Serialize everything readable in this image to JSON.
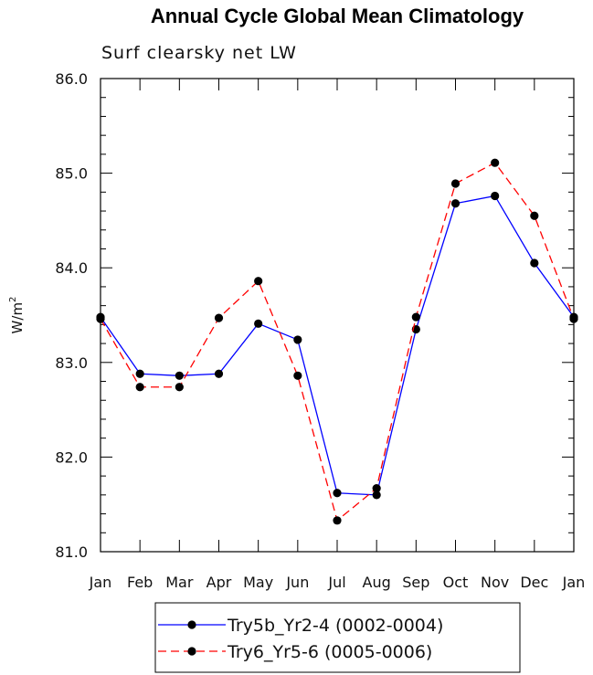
{
  "chart_data": {
    "type": "line",
    "title": "Annual Cycle Global Mean Climatology",
    "subtitle": "Surf clearsky net LW",
    "ylabel_base": "W/m",
    "ylabel_sup": "2",
    "ylim": [
      81.0,
      86.0
    ],
    "yticks": [
      "81.0",
      "82.0",
      "83.0",
      "84.0",
      "85.0",
      "86.0"
    ],
    "categories": [
      "Jan",
      "Feb",
      "Mar",
      "Apr",
      "May",
      "Jun",
      "Jul",
      "Aug",
      "Sep",
      "Oct",
      "Nov",
      "Dec",
      "Jan"
    ],
    "series": [
      {
        "name": "Try5b_Yr2-4 (0002-0004)",
        "color": "#0000ff",
        "dash": "solid",
        "values": [
          83.48,
          82.88,
          82.86,
          82.88,
          83.41,
          83.24,
          81.62,
          81.6,
          83.35,
          84.68,
          84.76,
          84.05,
          83.48
        ]
      },
      {
        "name": "Try6_Yr5-6 (0005-0006)",
        "color": "#ff0000",
        "dash": "dashed",
        "values": [
          83.46,
          82.74,
          82.74,
          83.47,
          83.86,
          82.86,
          81.33,
          81.67,
          83.48,
          84.89,
          85.11,
          84.55,
          83.46
        ]
      }
    ],
    "marker_color": "#000000",
    "legend_position": "bottom"
  }
}
